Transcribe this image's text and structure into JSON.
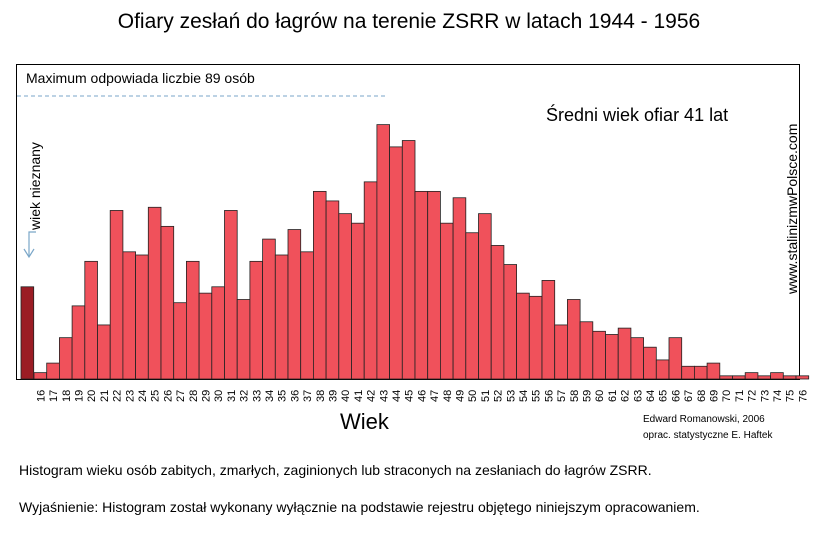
{
  "chart_data": {
    "type": "bar",
    "title": "Ofiary zesłań do łagrów na terenie ZSRR w latach 1944 - 1956",
    "xlabel": "Wiek",
    "ylabel": "",
    "ylim": [
      0,
      89
    ],
    "max_note": "Maximum odpowiada liczbie 89 osób",
    "mean_note": "Średni wiek ofiar 41 lat",
    "unknown_label": "wiek nieznany",
    "unknown_value": 29,
    "categories": [
      "16",
      "17",
      "18",
      "19",
      "20",
      "21",
      "22",
      "23",
      "24",
      "25",
      "26",
      "27",
      "28",
      "29",
      "30",
      "31",
      "32",
      "33",
      "34",
      "35",
      "36",
      "37",
      "38",
      "39",
      "40",
      "41",
      "42",
      "43",
      "44",
      "45",
      "46",
      "47",
      "48",
      "49",
      "50",
      "51",
      "52",
      "53",
      "54",
      "55",
      "56",
      "57",
      "58",
      "59",
      "60",
      "61",
      "62",
      "63",
      "64",
      "65",
      "66",
      "67",
      "68",
      "69",
      "70",
      "71",
      "72",
      "73",
      "74",
      "75",
      "76"
    ],
    "values": [
      2,
      5,
      13,
      23,
      37,
      17,
      53,
      40,
      39,
      54,
      48,
      24,
      37,
      27,
      29,
      53,
      25,
      37,
      44,
      39,
      47,
      40,
      59,
      56,
      52,
      49,
      62,
      80,
      73,
      75,
      59,
      59,
      49,
      57,
      46,
      52,
      42,
      36,
      27,
      26,
      31,
      17,
      25,
      18,
      15,
      14,
      16,
      13,
      10,
      6,
      13,
      4,
      4,
      5,
      1,
      1,
      2,
      1,
      2,
      1,
      1
    ],
    "tick_labels": [
      "16",
      "17",
      "18",
      "19",
      "20",
      "21",
      "22",
      "23",
      "24",
      "25",
      "26",
      "27",
      "28",
      "29",
      "30",
      "31",
      "32",
      "33",
      "34",
      "35",
      "36",
      "37",
      "38",
      "39",
      "40",
      "41",
      "42",
      "43",
      "44",
      "45",
      "46",
      "47",
      "48",
      "49",
      "50",
      "51",
      "52",
      "53",
      "54",
      "55",
      "56",
      "57",
      "58",
      "59",
      "60",
      "61",
      "62",
      "63",
      "64",
      "65",
      "66",
      "67",
      "68",
      "69",
      "70",
      "71",
      "72",
      "73",
      "74",
      "75",
      "76"
    ],
    "grid": false,
    "colors": {
      "bar": "#f0515b",
      "unknown_bar": "#9b1c24",
      "bar_edge": "#222222",
      "max_line": "#7aa6c8"
    }
  },
  "watermark": "www.stalinizmwPolsce.com",
  "credits": [
    "Edward Romanowski,  2006",
    "oprac. statystyczne  E. Haftek"
  ],
  "captions": [
    "Histogram wieku osób zabitych, zmarłych, zaginionych lub straconych na zesłaniach do łagrów ZSRR.",
    "Wyjaśnienie: Histogram  został wykonany wyłącznie na podstawie rejestru objętego niniejszym opracowaniem."
  ]
}
